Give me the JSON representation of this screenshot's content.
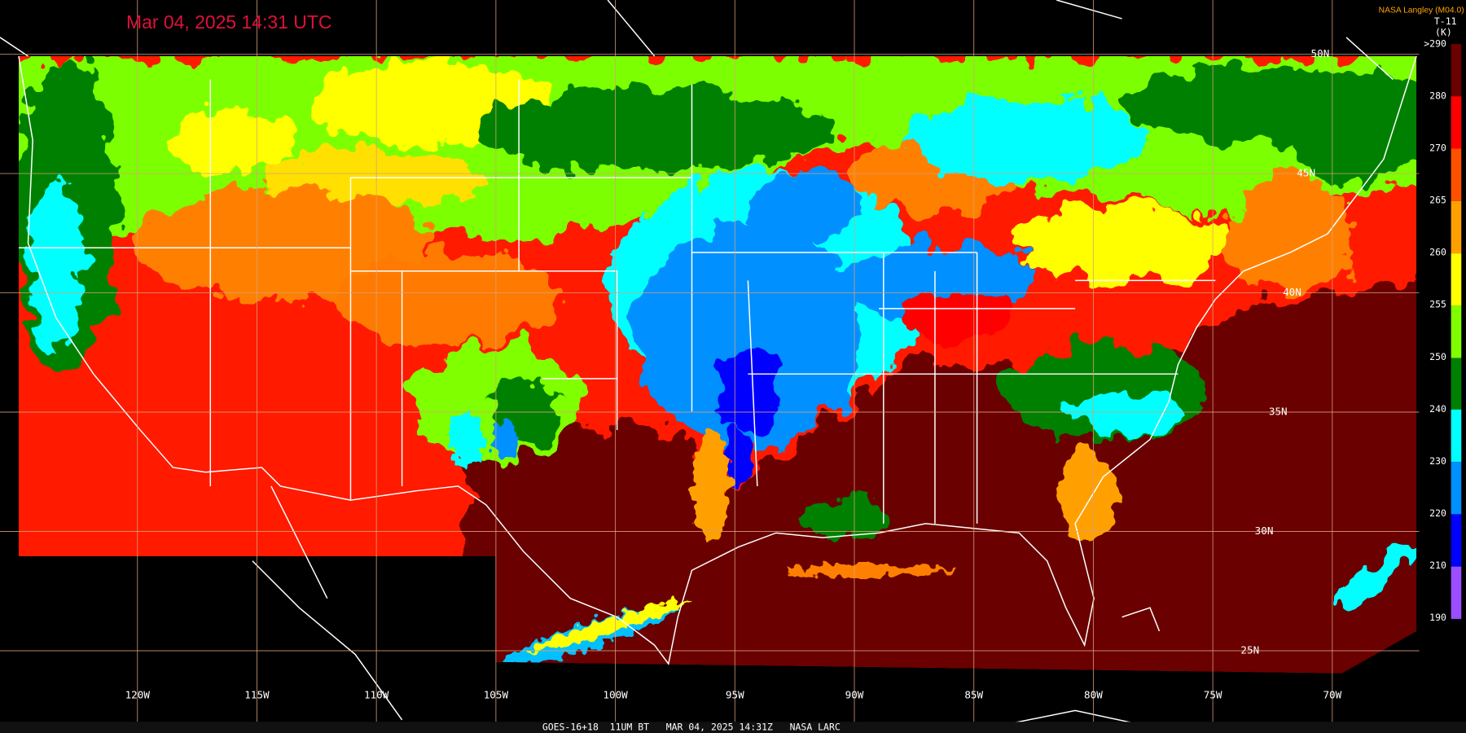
{
  "header": {
    "timestamp": "Mar 04, 2025 14:31 UTC",
    "credit": "NASA Langley (M04.0)"
  },
  "legend": {
    "product": "T-11",
    "unit": "(K)",
    "labels": [
      ">290",
      "280",
      "270",
      "265",
      "260",
      "255",
      "250",
      "240",
      "230",
      "220",
      "210",
      "190"
    ]
  },
  "axes": {
    "longitude": [
      "120W",
      "115W",
      "110W",
      "105W",
      "100W",
      "95W",
      "90W",
      "85W",
      "80W",
      "75W",
      "70W"
    ],
    "latitude": [
      "50N",
      "45N",
      "40N",
      "35N",
      "30N",
      "25N"
    ]
  },
  "footer": "GOES-16+18  11UM BT   MAR 04, 2025 14:31Z   NASA LARC"
}
